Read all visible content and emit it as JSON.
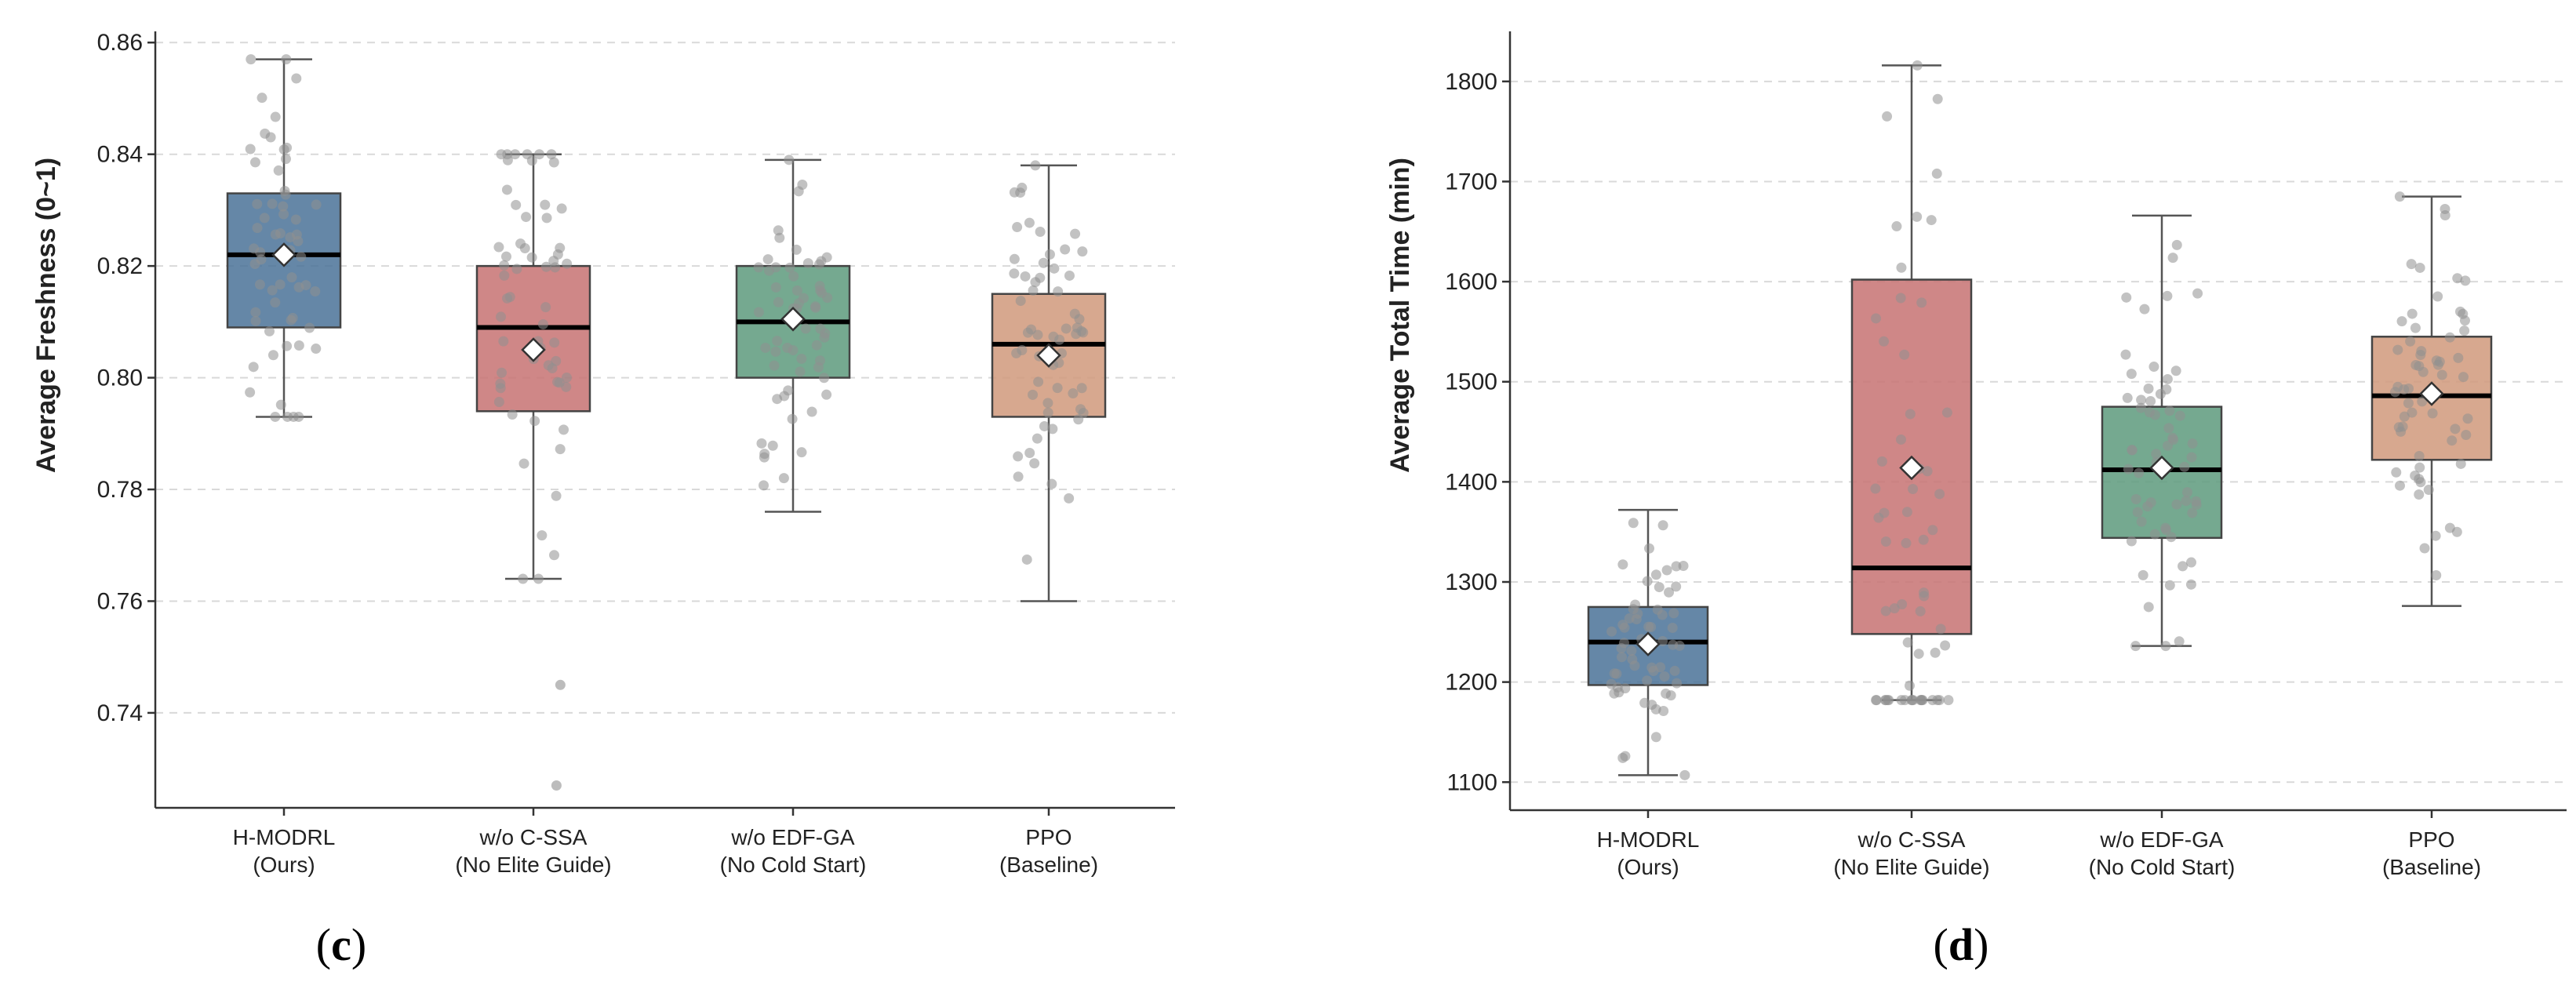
{
  "figure": {
    "panels": [
      {
        "label": "c",
        "ylabel": "Average Freshness (0~1)"
      },
      {
        "label": "d",
        "ylabel": "Average Total Time (min)"
      }
    ]
  },
  "chart_data": [
    {
      "type": "box",
      "panel": "c",
      "title": "",
      "ylabel": "Average Freshness (0~1)",
      "xlabel": "",
      "ylim": [
        0.723,
        0.862
      ],
      "yticks": [
        "0.74",
        "0.76",
        "0.78",
        "0.80",
        "0.82",
        "0.84",
        "0.86"
      ],
      "grid": "y-dashed",
      "categories": [
        {
          "line1": "H-MODRL",
          "line2": "(Ours)"
        },
        {
          "line1": "w/o C-SSA",
          "line2": "(No Elite Guide)"
        },
        {
          "line1": "w/o EDF-GA",
          "line2": "(No Cold Start)"
        },
        {
          "line1": "PPO",
          "line2": "(Baseline)"
        }
      ],
      "series": [
        {
          "color": "#4a7298",
          "whisker_low": 0.793,
          "q1": 0.809,
          "median": 0.822,
          "q3": 0.833,
          "whisker_high": 0.857,
          "mean": 0.822,
          "outliers": []
        },
        {
          "color": "#c77272",
          "whisker_low": 0.764,
          "q1": 0.794,
          "median": 0.809,
          "q3": 0.82,
          "whisker_high": 0.84,
          "mean": 0.805,
          "outliers": [
            0.745,
            0.727
          ]
        },
        {
          "color": "#5d9a7c",
          "whisker_low": 0.776,
          "q1": 0.8,
          "median": 0.81,
          "q3": 0.82,
          "whisker_high": 0.839,
          "mean": 0.8105,
          "outliers": []
        },
        {
          "color": "#d0997b",
          "whisker_low": 0.76,
          "q1": 0.793,
          "median": 0.806,
          "q3": 0.815,
          "whisker_high": 0.838,
          "mean": 0.804,
          "outliers": []
        }
      ]
    },
    {
      "type": "box",
      "panel": "d",
      "title": "",
      "ylabel": "Average Total Time (min)",
      "xlabel": "",
      "ylim": [
        1072,
        1850
      ],
      "yticks": [
        "1100",
        "1200",
        "1300",
        "1400",
        "1500",
        "1600",
        "1700",
        "1800"
      ],
      "grid": "y-dashed",
      "categories": [
        {
          "line1": "H-MODRL",
          "line2": "(Ours)"
        },
        {
          "line1": "w/o C-SSA",
          "line2": "(No Elite Guide)"
        },
        {
          "line1": "w/o EDF-GA",
          "line2": "(No Cold Start)"
        },
        {
          "line1": "PPO",
          "line2": "(Baseline)"
        }
      ],
      "series": [
        {
          "color": "#4a7298",
          "whisker_low": 1107,
          "q1": 1197,
          "median": 1240,
          "q3": 1275,
          "whisker_high": 1372,
          "mean": 1238,
          "outliers": []
        },
        {
          "color": "#c77272",
          "whisker_low": 1182,
          "q1": 1248,
          "median": 1314,
          "q3": 1602,
          "whisker_high": 1816,
          "mean": 1414,
          "outliers": []
        },
        {
          "color": "#5d9a7c",
          "whisker_low": 1236,
          "q1": 1344,
          "median": 1412,
          "q3": 1475,
          "whisker_high": 1666,
          "mean": 1414,
          "outliers": []
        },
        {
          "color": "#d0997b",
          "whisker_low": 1276,
          "q1": 1422,
          "median": 1486,
          "q3": 1545,
          "whisker_high": 1685,
          "mean": 1488,
          "outliers": []
        }
      ]
    }
  ]
}
